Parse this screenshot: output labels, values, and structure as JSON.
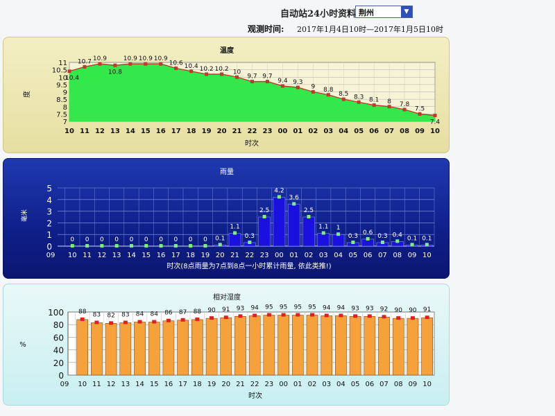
{
  "header": {
    "title": "自动站24小时资料",
    "station_value": "荆州",
    "period_label": "观测时间:",
    "period_value": "2017年1月4日10时—2017年1月5日10时"
  },
  "colors": {
    "temp_fill": "#33e84a",
    "temp_line": "#c0392b",
    "rain_bar": "#1a10e0",
    "rain_marker": "#7cf07c",
    "hum_bar": "#f5a23c",
    "hum_marker": "#e02020"
  },
  "chart_data": [
    {
      "type": "area",
      "title": "温度",
      "xlabel": "时次",
      "ylabel": "度",
      "categories": [
        "10",
        "11",
        "12",
        "13",
        "14",
        "15",
        "16",
        "17",
        "18",
        "19",
        "20",
        "21",
        "22",
        "23",
        "00",
        "01",
        "02",
        "03",
        "04",
        "05",
        "06",
        "07",
        "08",
        "09",
        "10"
      ],
      "values": [
        10.4,
        10.7,
        10.9,
        10.8,
        10.9,
        10.9,
        10.9,
        10.6,
        10.4,
        10.2,
        10.2,
        10,
        9.7,
        9.7,
        9.4,
        9.3,
        9,
        8.8,
        8.5,
        8.3,
        8.1,
        8,
        7.8,
        7.5,
        7.4
      ],
      "y_ticks": [
        "7",
        "7.5",
        "8",
        "8.5",
        "9",
        "9.5",
        "10",
        "10.5",
        "11"
      ],
      "ylim": [
        7,
        11
      ],
      "grid": true
    },
    {
      "type": "bar",
      "title": "雨量",
      "xlabel": "时次(8点雨量为7点到8点一小时累计雨量, 依此类推!)",
      "ylabel": "毫米",
      "categories": [
        "10",
        "11",
        "12",
        "13",
        "14",
        "15",
        "16",
        "17",
        "18",
        "19",
        "20",
        "21",
        "22",
        "23",
        "00",
        "01",
        "02",
        "03",
        "04",
        "05",
        "06",
        "07",
        "08",
        "09",
        "10"
      ],
      "first_tick": "09",
      "values": [
        0,
        0,
        0,
        0,
        0,
        0,
        0,
        0,
        0,
        0,
        0.1,
        1.1,
        0.3,
        2.5,
        4.2,
        3.6,
        2.5,
        1.1,
        1,
        0.3,
        0.6,
        0.3,
        0.4,
        0.1,
        0.1
      ],
      "y_ticks": [
        "0",
        "1",
        "2",
        "3",
        "4",
        "5"
      ],
      "ylim": [
        0,
        5
      ],
      "grid": true
    },
    {
      "type": "bar",
      "title": "相对湿度",
      "xlabel": "时次",
      "ylabel": "%",
      "categories": [
        "10",
        "11",
        "12",
        "13",
        "14",
        "15",
        "16",
        "17",
        "18",
        "19",
        "20",
        "21",
        "22",
        "23",
        "00",
        "01",
        "02",
        "03",
        "04",
        "05",
        "06",
        "07",
        "08",
        "09",
        "10"
      ],
      "first_tick": "09",
      "values": [
        88,
        83,
        82,
        83,
        84,
        84,
        86,
        87,
        88,
        90,
        91,
        93,
        94,
        95,
        95,
        95,
        95,
        94,
        94,
        93,
        93,
        92,
        90,
        90,
        91
      ],
      "y_ticks": [
        "0",
        "20",
        "40",
        "60",
        "80",
        "100"
      ],
      "ylim": [
        0,
        100
      ],
      "grid": true
    }
  ]
}
